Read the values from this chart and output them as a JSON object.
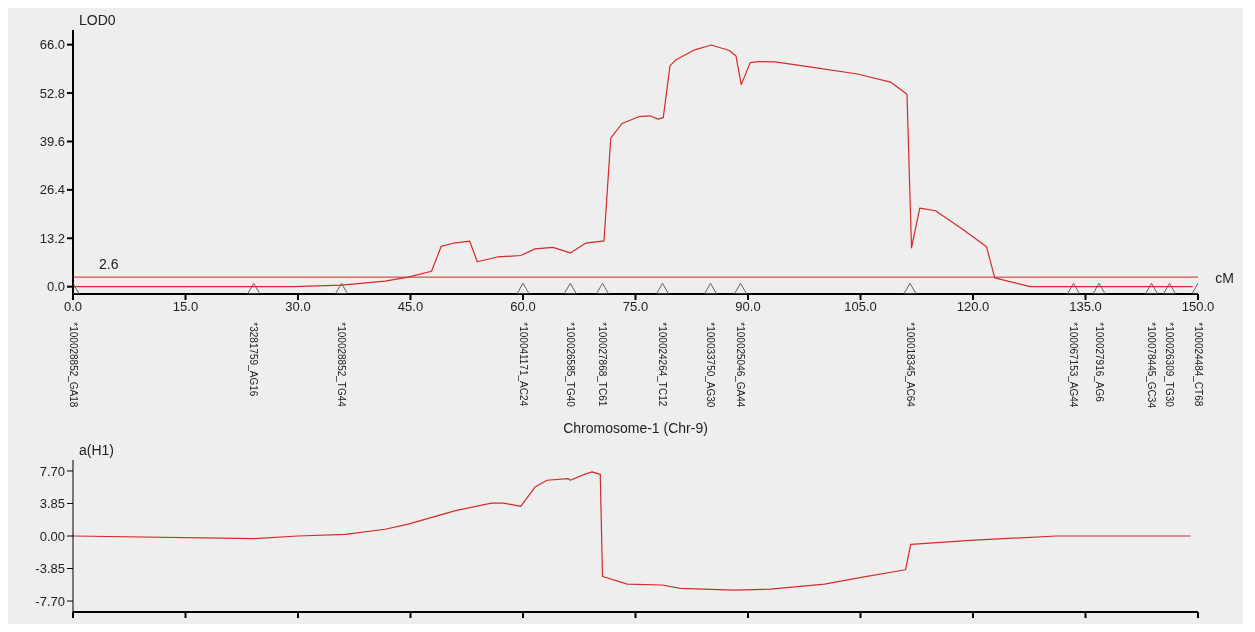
{
  "chart_data": [
    {
      "type": "line",
      "xlabel": "Chromosome-1 (Chr-9)",
      "ylabel": "LOD0",
      "series": [
        {
          "color": "#d42a2a",
          "x": [
            0,
            29.5,
            35.8,
            41.6,
            44.7,
            47.8,
            49.1,
            50.8,
            52.9,
            53.9,
            56.6,
            59.7,
            61.6,
            64.0,
            66.3,
            68.4,
            70.8,
            71.7,
            73.2,
            75.5,
            76.9,
            78.0,
            78.7,
            79.6,
            80.4,
            82.9,
            85.1,
            87.5,
            88.4,
            89.1,
            90.3,
            91.4,
            93.6,
            98.0,
            104.6,
            109.0,
            111.2,
            111.8,
            112.9,
            115.0,
            118.8,
            121.8,
            122.9,
            127.6,
            149.3
          ],
          "values": [
            0,
            0,
            0.4,
            1.5,
            2.6,
            4.2,
            11.0,
            11.9,
            12.4,
            6.8,
            8.1,
            8.5,
            10.3,
            10.7,
            9.2,
            11.9,
            12.5,
            40.5,
            44.5,
            46.4,
            46.6,
            45.7,
            46.1,
            60.2,
            61.9,
            64.6,
            65.9,
            64.4,
            62.9,
            55.1,
            61.1,
            61.4,
            61.3,
            60.0,
            58.0,
            55.8,
            52.5,
            10.6,
            21.4,
            20.7,
            15.4,
            10.9,
            2.4,
            0,
            0
          ]
        },
        {
          "type": "scatter",
          "marker": "triangle",
          "color": "#555555",
          "x": [
            0,
            24.1,
            35.8,
            60,
            66.3,
            70.6,
            78.6,
            85,
            89,
            111.6,
            133.4,
            136.8,
            143.8,
            146.2,
            150
          ],
          "values": [
            -1,
            -1,
            -1,
            -1,
            -1,
            -1,
            -1,
            -1,
            -1,
            -1,
            -1,
            -1,
            -1,
            -1,
            -1
          ],
          "value_labels": [
            "*100028852_GA18",
            "*3281759_AG16",
            "*100028852_TG44",
            "*100041171_AC24",
            "*100026585_TG40",
            "*100027868_TC61",
            "*100024264_TC12",
            "*100033750_AG30",
            "*100025046_GA44",
            "*100018345_AC64",
            "*100067153_AG44",
            "*100027916_AG6",
            "*100078445_GC34",
            "*100026309_TG30",
            "*100024484_CT68"
          ]
        }
      ],
      "xlim": [
        0,
        150
      ],
      "xticks": [
        {
          "value": 0,
          "label": "0.0"
        },
        {
          "value": 15,
          "label": "15.0"
        },
        {
          "value": 30,
          "label": "30.0"
        },
        {
          "value": 45,
          "label": "45.0"
        },
        {
          "value": 60,
          "label": "60.0"
        },
        {
          "value": 75,
          "label": "75.0"
        },
        {
          "value": 90,
          "label": "90.0"
        },
        {
          "value": 105,
          "label": "105.0"
        },
        {
          "value": 120,
          "label": "120.0"
        },
        {
          "value": 135,
          "label": "135.0"
        },
        {
          "value": 150,
          "label": "150.0"
        }
      ],
      "ylim": [
        -2,
        70
      ],
      "yticks": [
        {
          "value": 0,
          "label": "0.0"
        },
        {
          "value": 13.2,
          "label": "13.2"
        },
        {
          "value": 26.4,
          "label": "26.4"
        },
        {
          "value": 39.6,
          "label": "39.6"
        },
        {
          "value": 52.8,
          "label": "52.8"
        },
        {
          "value": 66,
          "label": "66.0"
        }
      ],
      "ref_lines": [
        {
          "axis": "y",
          "value": 2.6,
          "label": "2.6",
          "color": "#d42a2a"
        }
      ],
      "annotations": [
        "cM"
      ]
    },
    {
      "type": "line",
      "ylabel": "a(H1)",
      "color": "#d42a2a",
      "tick_labels": "y",
      "x": [
        0,
        24.2,
        30,
        36.3,
        41.6,
        44.7,
        51.0,
        55.8,
        57.4,
        59.7,
        61.6,
        63.2,
        66.0,
        66.3,
        68.2,
        69.2,
        70.3,
        70.6,
        73.9,
        78.5,
        81.0,
        88.1,
        93.0,
        100.2,
        105.1,
        111.0,
        111.7,
        120.2,
        131.1,
        149.0
      ],
      "values": [
        0,
        -0.3,
        0,
        0.2,
        0.8,
        1.4,
        3.0,
        3.9,
        3.9,
        3.5,
        5.8,
        6.6,
        6.8,
        6.6,
        7.3,
        7.6,
        7.3,
        -4.8,
        -5.7,
        -5.8,
        -6.2,
        -6.4,
        -6.3,
        -5.7,
        -4.9,
        -4.0,
        -1.0,
        -0.5,
        0,
        0
      ],
      "xlim": [
        0,
        150
      ],
      "xticks": [
        {
          "value": 0,
          "label": null
        },
        {
          "value": 15,
          "label": null
        },
        {
          "value": 30,
          "label": null
        },
        {
          "value": 45,
          "label": null
        },
        {
          "value": 60,
          "label": null
        },
        {
          "value": 75,
          "label": null
        },
        {
          "value": 90,
          "label": null
        },
        {
          "value": 105,
          "label": null
        },
        {
          "value": 120,
          "label": null
        },
        {
          "value": 135,
          "label": null
        },
        {
          "value": 150,
          "label": null
        }
      ],
      "ylim": [
        -9,
        9
      ],
      "yticks": [
        {
          "value": -7.7,
          "label": "-7.70"
        },
        {
          "value": -3.85,
          "label": "-3.85"
        },
        {
          "value": 0,
          "label": "0.00"
        },
        {
          "value": 3.85,
          "label": "3.85"
        },
        {
          "value": 7.7,
          "label": "7.70"
        }
      ]
    }
  ]
}
